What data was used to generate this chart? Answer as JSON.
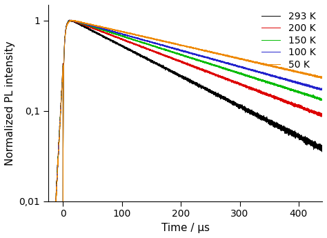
{
  "title": "",
  "xlabel": "Time / μs",
  "ylabel": "Normalized PL intensity",
  "xlim": [
    -25,
    440
  ],
  "ylim": [
    0.01,
    1.5
  ],
  "xticks": [
    0,
    100,
    200,
    300,
    400
  ],
  "yticks": [
    0.01,
    0.1,
    1
  ],
  "ytick_labels": [
    "0,01",
    "0,1",
    "1"
  ],
  "background_color": "#ffffff",
  "series": [
    {
      "label": "293 K",
      "color": "#000000",
      "tau": 130,
      "noise": 0.008,
      "rise_tau": 3.5
    },
    {
      "label": "200 K",
      "color": "#dd0000",
      "tau": 175,
      "noise": 0.006,
      "rise_tau": 3.5
    },
    {
      "label": "150 K",
      "color": "#00bb00",
      "tau": 210,
      "noise": 0.005,
      "rise_tau": 3.5
    },
    {
      "label": "100 K",
      "color": "#2222cc",
      "tau": 240,
      "noise": 0.005,
      "rise_tau": 3.5
    },
    {
      "label": "50 K",
      "color": "#ee8800",
      "tau": 290,
      "noise": 0.005,
      "rise_tau": 3.5
    }
  ],
  "legend_loc": "upper right",
  "linewidth": 0.7,
  "figsize": [
    4.74,
    3.45
  ],
  "dpi": 100
}
